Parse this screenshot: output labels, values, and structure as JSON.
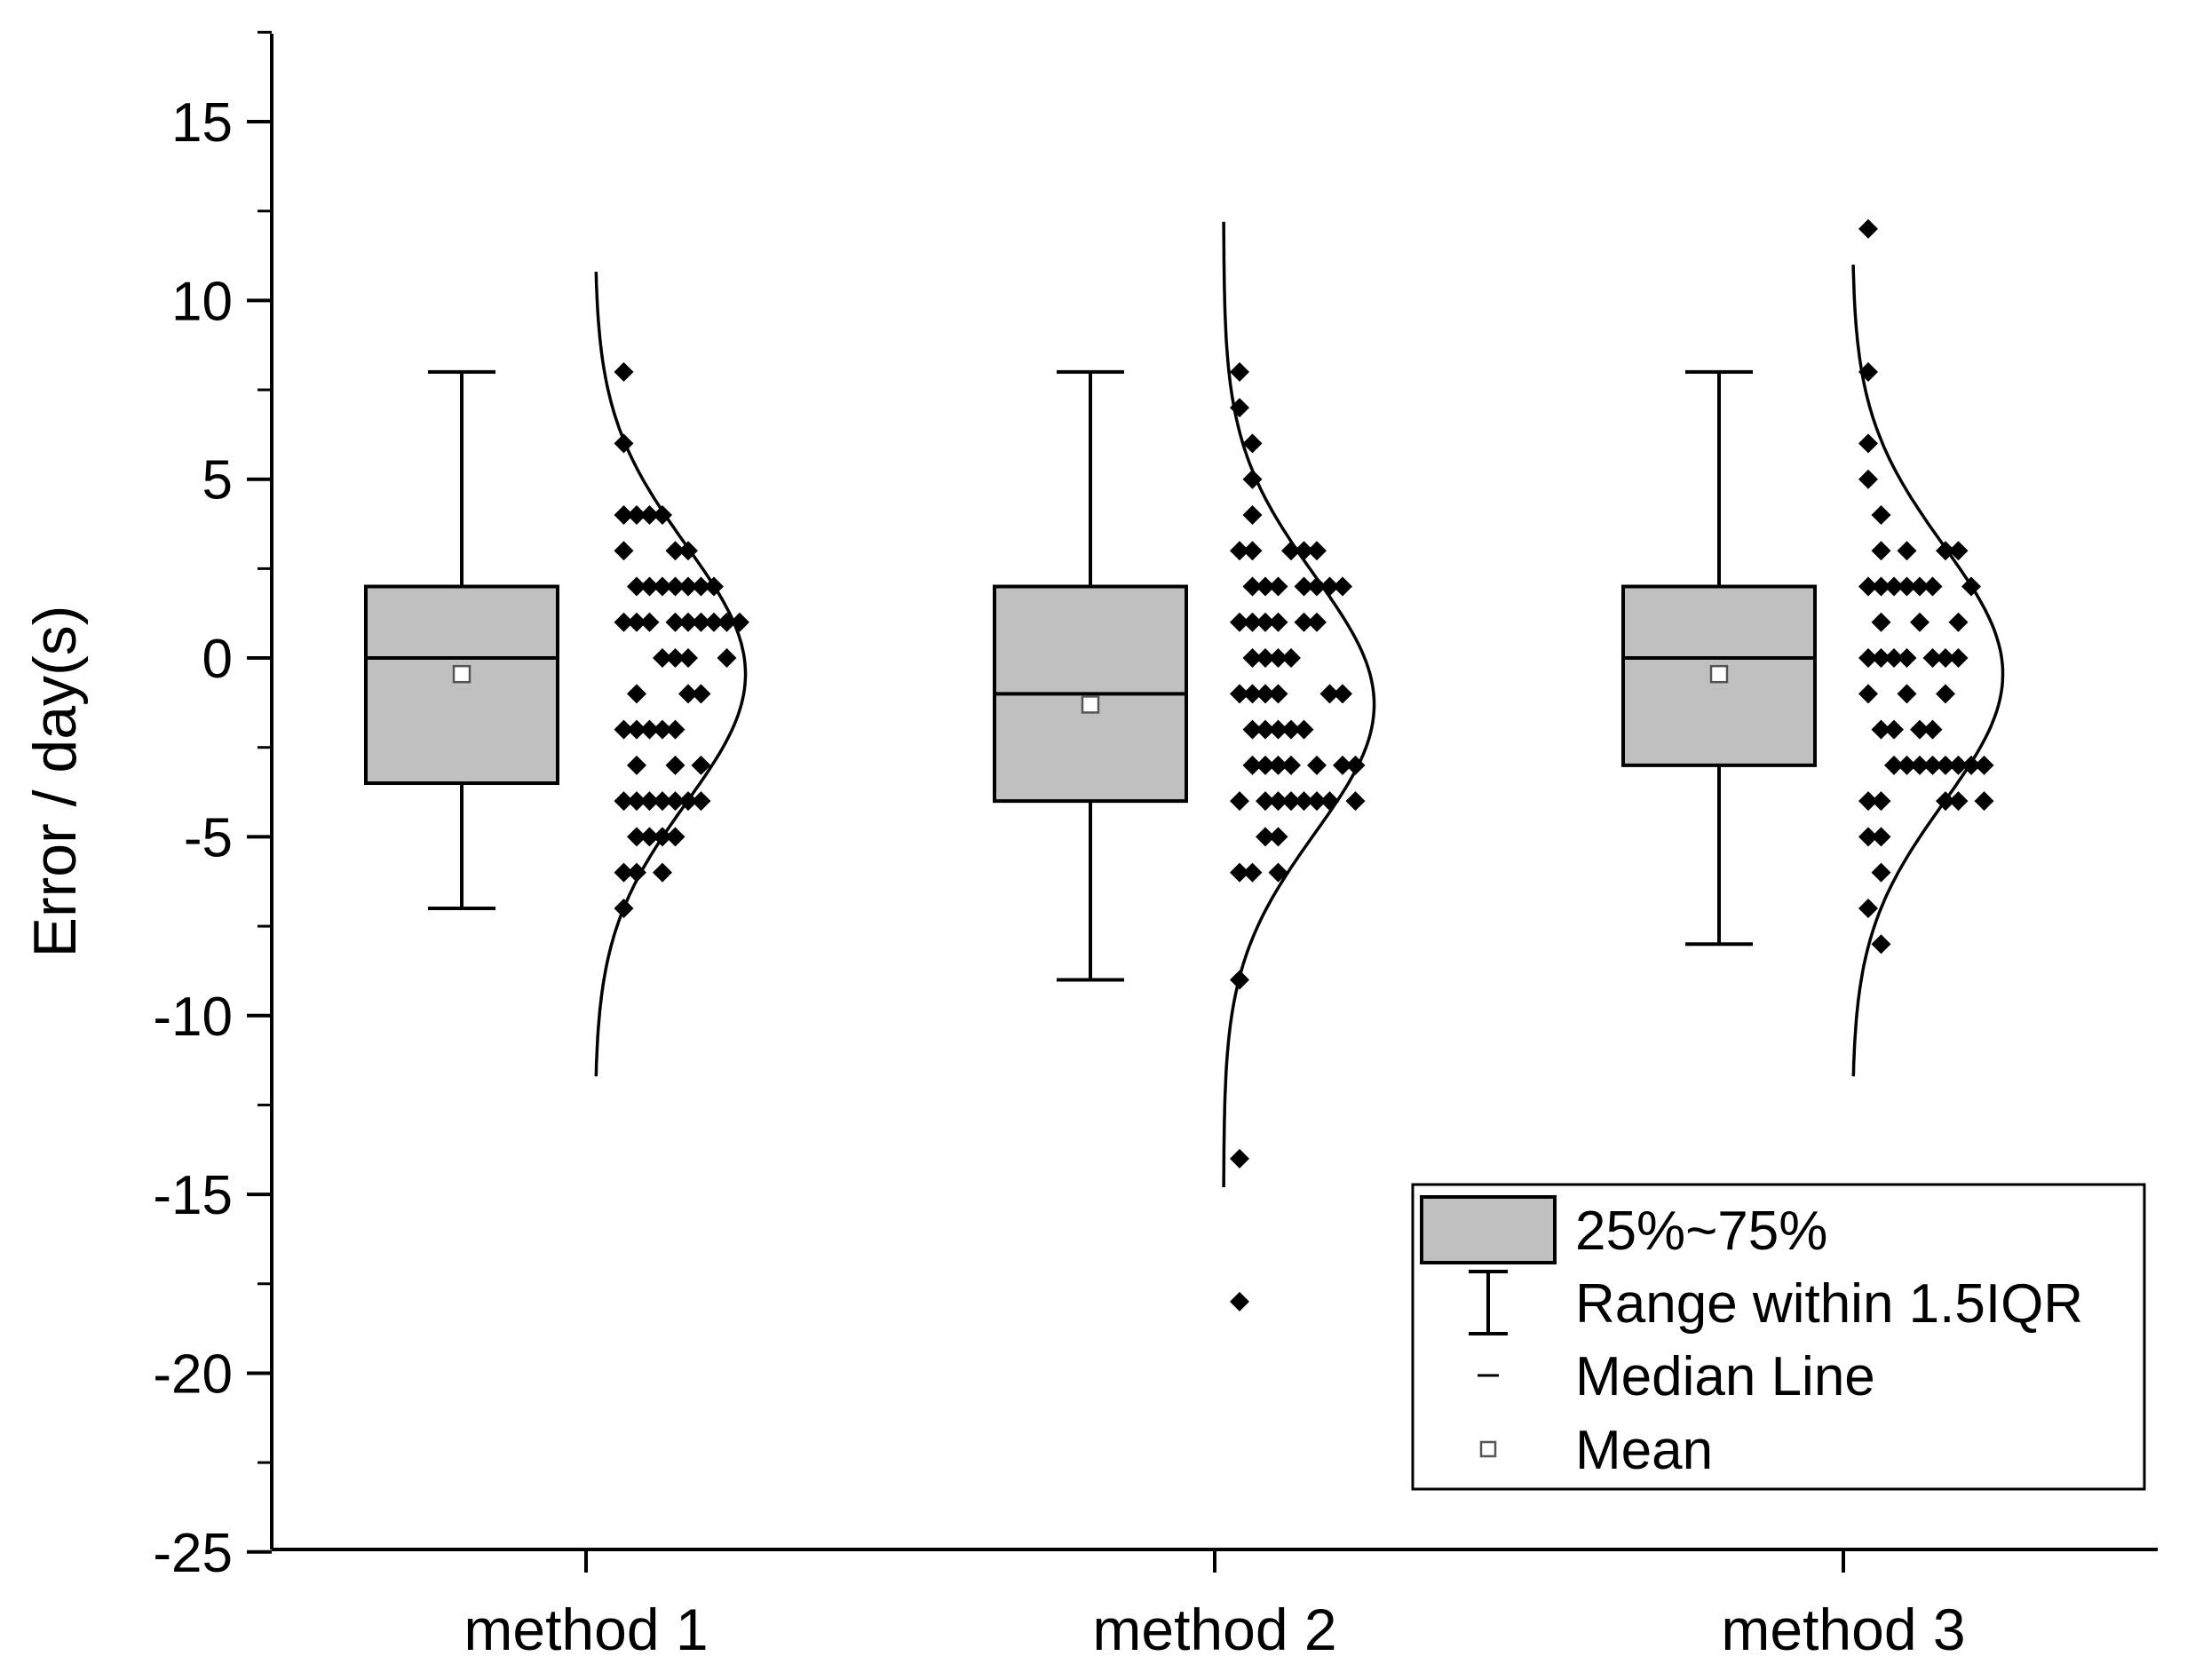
{
  "chart_data": {
    "type": "box",
    "ylabel": "Error / day(s)",
    "xlabel": "",
    "ylim": [
      -25,
      17.5
    ],
    "yticks": [
      15,
      10,
      5,
      0,
      -5,
      -10,
      -15,
      -20,
      -25
    ],
    "ytick_labels": [
      "15",
      "10",
      "5",
      "0",
      "-5",
      "-10",
      "-15",
      "-20",
      "-25"
    ],
    "categories": [
      "method 1",
      "method 2",
      "method 3"
    ],
    "boxes": [
      {
        "name": "method 1",
        "whisker_low": -7,
        "q1": -3.5,
        "median": 0,
        "q3": 2,
        "whisker_high": 8,
        "mean": -0.45,
        "normal_curve": {
          "mu": -0.45,
          "sigma": 3.6,
          "range": [
            -11.7,
            10.8
          ]
        },
        "points": [
          [
            1,
            8
          ],
          [
            1,
            6
          ],
          [
            1,
            4
          ],
          [
            2,
            4
          ],
          [
            3,
            4
          ],
          [
            4,
            4
          ],
          [
            1,
            3
          ],
          [
            5,
            3
          ],
          [
            6,
            3
          ],
          [
            2,
            2
          ],
          [
            3,
            2
          ],
          [
            4,
            2
          ],
          [
            5,
            2
          ],
          [
            6,
            2
          ],
          [
            7,
            2
          ],
          [
            8,
            2
          ],
          [
            1,
            1
          ],
          [
            2,
            1
          ],
          [
            3,
            1
          ],
          [
            5,
            1
          ],
          [
            6,
            1
          ],
          [
            7,
            1
          ],
          [
            8,
            1
          ],
          [
            9,
            1
          ],
          [
            10,
            1
          ],
          [
            4,
            0
          ],
          [
            5,
            0
          ],
          [
            6,
            0
          ],
          [
            9,
            0
          ],
          [
            2,
            -1
          ],
          [
            6,
            -1
          ],
          [
            7,
            -1
          ],
          [
            1,
            -2
          ],
          [
            2,
            -2
          ],
          [
            3,
            -2
          ],
          [
            4,
            -2
          ],
          [
            5,
            -2
          ],
          [
            2,
            -3
          ],
          [
            5,
            -3
          ],
          [
            7,
            -3
          ],
          [
            1,
            -4
          ],
          [
            2,
            -4
          ],
          [
            3,
            -4
          ],
          [
            4,
            -4
          ],
          [
            5,
            -4
          ],
          [
            6,
            -4
          ],
          [
            7,
            -4
          ],
          [
            2,
            -5
          ],
          [
            3,
            -5
          ],
          [
            4,
            -5
          ],
          [
            5,
            -5
          ],
          [
            1,
            -6
          ],
          [
            2,
            -6
          ],
          [
            4,
            -6
          ],
          [
            1,
            -7
          ]
        ]
      },
      {
        "name": "method 2",
        "whisker_low": -9,
        "q1": -4,
        "median": -1,
        "q3": 2,
        "whisker_high": 8,
        "mean": -1.3,
        "normal_curve": {
          "mu": -1.3,
          "sigma": 3.6,
          "range": [
            -14.8,
            12.2
          ]
        },
        "points": [
          [
            0,
            8
          ],
          [
            0,
            7
          ],
          [
            1,
            6
          ],
          [
            1,
            5
          ],
          [
            1,
            4
          ],
          [
            0,
            3
          ],
          [
            1,
            3
          ],
          [
            4,
            3
          ],
          [
            5,
            3
          ],
          [
            6,
            3
          ],
          [
            1,
            2
          ],
          [
            2,
            2
          ],
          [
            3,
            2
          ],
          [
            5,
            2
          ],
          [
            6,
            2
          ],
          [
            7,
            2
          ],
          [
            8,
            2
          ],
          [
            0,
            1
          ],
          [
            1,
            1
          ],
          [
            2,
            1
          ],
          [
            3,
            1
          ],
          [
            5,
            1
          ],
          [
            6,
            1
          ],
          [
            1,
            0
          ],
          [
            2,
            0
          ],
          [
            3,
            0
          ],
          [
            4,
            0
          ],
          [
            0,
            -1
          ],
          [
            1,
            -1
          ],
          [
            2,
            -1
          ],
          [
            3,
            -1
          ],
          [
            7,
            -1
          ],
          [
            8,
            -1
          ],
          [
            1,
            -2
          ],
          [
            2,
            -2
          ],
          [
            3,
            -2
          ],
          [
            4,
            -2
          ],
          [
            5,
            -2
          ],
          [
            1,
            -3
          ],
          [
            2,
            -3
          ],
          [
            3,
            -3
          ],
          [
            4,
            -3
          ],
          [
            6,
            -3
          ],
          [
            8,
            -3
          ],
          [
            9,
            -3
          ],
          [
            0,
            -4
          ],
          [
            2,
            -4
          ],
          [
            3,
            -4
          ],
          [
            4,
            -4
          ],
          [
            5,
            -4
          ],
          [
            6,
            -4
          ],
          [
            7,
            -4
          ],
          [
            9,
            -4
          ],
          [
            2,
            -5
          ],
          [
            3,
            -5
          ],
          [
            0,
            -6
          ],
          [
            1,
            -6
          ],
          [
            3,
            -6
          ],
          [
            0,
            -9
          ],
          [
            0,
            -14
          ],
          [
            0,
            -18
          ]
        ]
      },
      {
        "name": "method 3",
        "whisker_low": -8,
        "q1": -3,
        "median": 0,
        "q3": 2,
        "whisker_high": 8,
        "mean": -0.45,
        "normal_curve": {
          "mu": -0.45,
          "sigma": 3.6,
          "range": [
            -11.7,
            11.0
          ]
        },
        "points": [
          [
            0,
            12
          ],
          [
            0,
            8
          ],
          [
            0,
            6
          ],
          [
            0,
            5
          ],
          [
            1,
            4
          ],
          [
            1,
            3
          ],
          [
            3,
            3
          ],
          [
            6,
            3
          ],
          [
            7,
            3
          ],
          [
            0,
            2
          ],
          [
            1,
            2
          ],
          [
            2,
            2
          ],
          [
            3,
            2
          ],
          [
            4,
            2
          ],
          [
            5,
            2
          ],
          [
            8,
            2
          ],
          [
            1,
            1
          ],
          [
            4,
            1
          ],
          [
            7,
            1
          ],
          [
            0,
            0
          ],
          [
            1,
            0
          ],
          [
            2,
            0
          ],
          [
            3,
            0
          ],
          [
            5,
            0
          ],
          [
            6,
            0
          ],
          [
            7,
            0
          ],
          [
            0,
            -1
          ],
          [
            3,
            -1
          ],
          [
            6,
            -1
          ],
          [
            1,
            -2
          ],
          [
            2,
            -2
          ],
          [
            4,
            -2
          ],
          [
            5,
            -2
          ],
          [
            2,
            -3
          ],
          [
            3,
            -3
          ],
          [
            4,
            -3
          ],
          [
            5,
            -3
          ],
          [
            6,
            -3
          ],
          [
            7,
            -3
          ],
          [
            8,
            -3
          ],
          [
            9,
            -3
          ],
          [
            0,
            -4
          ],
          [
            1,
            -4
          ],
          [
            6,
            -4
          ],
          [
            7,
            -4
          ],
          [
            9,
            -4
          ],
          [
            0,
            -5
          ],
          [
            1,
            -5
          ],
          [
            1,
            -6
          ],
          [
            0,
            -7
          ],
          [
            1,
            -8
          ]
        ]
      }
    ],
    "legend": {
      "position": "bottom-right",
      "entries": [
        {
          "symbol": "box",
          "label": "25%~75%"
        },
        {
          "symbol": "whisker",
          "label": "Range within 1.5IQR"
        },
        {
          "symbol": "median",
          "label": "Median Line"
        },
        {
          "symbol": "mean",
          "label": "Mean"
        }
      ]
    },
    "colors": {
      "box_fill": "#c0c0c0",
      "line": "#000000",
      "marker": "#000000",
      "mean_fill": "#ffffff"
    }
  }
}
